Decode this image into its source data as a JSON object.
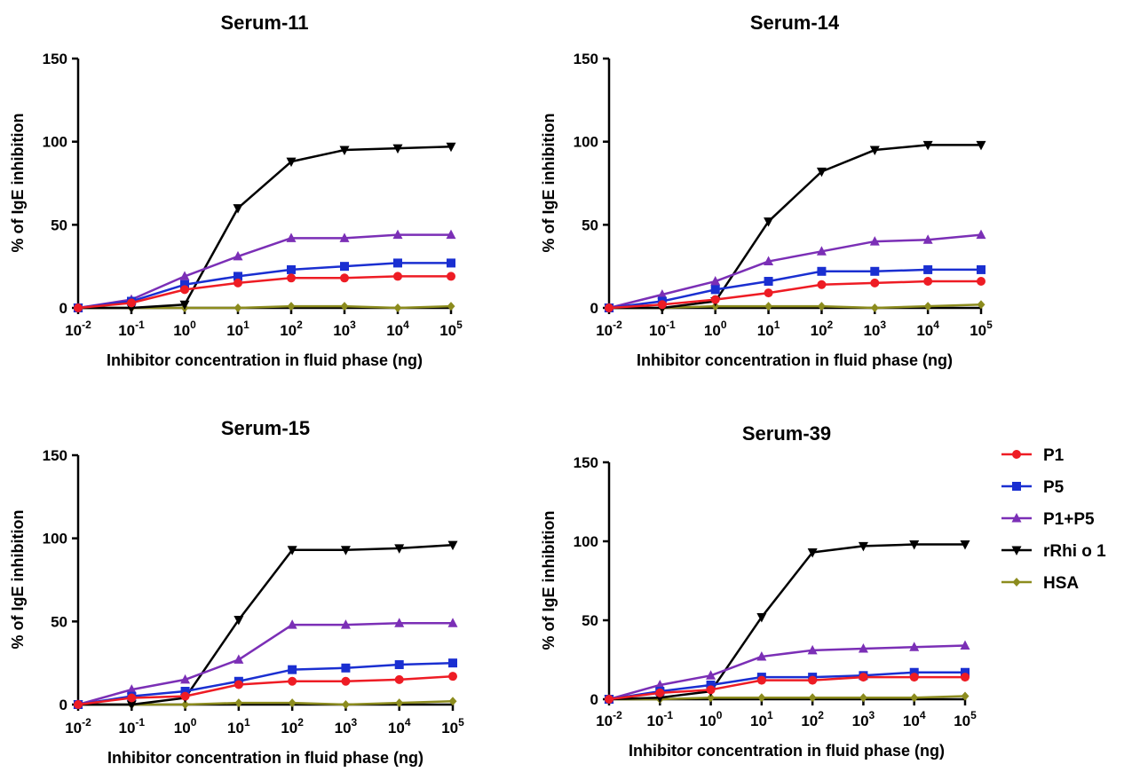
{
  "legend": {
    "placement": "right",
    "entries": [
      {
        "name": "P1",
        "color": "#ee1c24",
        "marker": "circle"
      },
      {
        "name": "P5",
        "color": "#1a2fd1",
        "marker": "square"
      },
      {
        "name": "P1+P5",
        "color": "#7b2fb6",
        "marker": "triangle-up"
      },
      {
        "name": "rRhi o 1",
        "color": "#000000",
        "marker": "triangle-down"
      },
      {
        "name": "HSA",
        "color": "#8c8c1e",
        "marker": "diamond"
      }
    ]
  },
  "chart_data": [
    {
      "type": "line",
      "title": "Serum-11",
      "xlabel": "Inhibitor concentration  in fluid phase (ng)",
      "ylabel": "% of IgE inhibition",
      "xscale": "log",
      "x": [
        0.01,
        0.1,
        1,
        10,
        100,
        1000,
        10000,
        100000
      ],
      "xticks": [
        {
          "base": "10",
          "exp": "-2"
        },
        {
          "base": "10",
          "exp": "-1"
        },
        {
          "base": "10",
          "exp": "0"
        },
        {
          "base": "10",
          "exp": "1"
        },
        {
          "base": "10",
          "exp": "2"
        },
        {
          "base": "10",
          "exp": "3"
        },
        {
          "base": "10",
          "exp": "4"
        },
        {
          "base": "10",
          "exp": "5"
        }
      ],
      "ylim": [
        0,
        150
      ],
      "yticks": [
        "0",
        "50",
        "100",
        "150"
      ],
      "grid": false,
      "series": [
        {
          "name": "P1",
          "values": [
            0,
            3,
            11,
            15,
            18,
            18,
            19,
            19
          ]
        },
        {
          "name": "P5",
          "values": [
            0,
            4,
            14,
            19,
            23,
            25,
            27,
            27
          ]
        },
        {
          "name": "P1+P5",
          "values": [
            0,
            5,
            19,
            31,
            42,
            42,
            44,
            44
          ]
        },
        {
          "name": "rRhi o 1",
          "values": [
            0,
            0,
            2,
            60,
            88,
            95,
            96,
            97
          ]
        },
        {
          "name": "HSA",
          "values": [
            0,
            0,
            0,
            0,
            1,
            1,
            0,
            1
          ]
        }
      ]
    },
    {
      "type": "line",
      "title": "Serum-14",
      "xlabel": "Inhibitor concentration  in fluid phase (ng)",
      "ylabel": "% of IgE inhibition",
      "xscale": "log",
      "x": [
        0.01,
        0.1,
        1,
        10,
        100,
        1000,
        10000,
        100000
      ],
      "xticks": [
        {
          "base": "10",
          "exp": "-2"
        },
        {
          "base": "10",
          "exp": "-1"
        },
        {
          "base": "10",
          "exp": "0"
        },
        {
          "base": "10",
          "exp": "1"
        },
        {
          "base": "10",
          "exp": "2"
        },
        {
          "base": "10",
          "exp": "3"
        },
        {
          "base": "10",
          "exp": "4"
        },
        {
          "base": "10",
          "exp": "5"
        }
      ],
      "ylim": [
        0,
        150
      ],
      "yticks": [
        "0",
        "50",
        "100",
        "150"
      ],
      "grid": false,
      "series": [
        {
          "name": "P1",
          "values": [
            0,
            2,
            5,
            9,
            14,
            15,
            16,
            16
          ]
        },
        {
          "name": "P5",
          "values": [
            0,
            4,
            11,
            16,
            22,
            22,
            23,
            23
          ]
        },
        {
          "name": "P1+P5",
          "values": [
            0,
            8,
            16,
            28,
            34,
            40,
            41,
            44
          ]
        },
        {
          "name": "rRhi o 1",
          "values": [
            0,
            0,
            4,
            52,
            82,
            95,
            98,
            98
          ]
        },
        {
          "name": "HSA",
          "values": [
            0,
            0,
            1,
            1,
            1,
            0,
            1,
            2
          ]
        }
      ]
    },
    {
      "type": "line",
      "title": "Serum-15",
      "xlabel": "Inhibitor concentration in fluid phase (ng)",
      "ylabel": "% of IgE inhibition",
      "xscale": "log",
      "x": [
        0.01,
        0.1,
        1,
        10,
        100,
        1000,
        10000,
        100000
      ],
      "xticks": [
        {
          "base": "10",
          "exp": "-2"
        },
        {
          "base": "10",
          "exp": "-1"
        },
        {
          "base": "10",
          "exp": "0"
        },
        {
          "base": "10",
          "exp": "1"
        },
        {
          "base": "10",
          "exp": "2"
        },
        {
          "base": "10",
          "exp": "3"
        },
        {
          "base": "10",
          "exp": "4"
        },
        {
          "base": "10",
          "exp": "5"
        }
      ],
      "ylim": [
        0,
        150
      ],
      "yticks": [
        "0",
        "50",
        "100",
        "150"
      ],
      "grid": false,
      "series": [
        {
          "name": "P1",
          "values": [
            0,
            4,
            5,
            12,
            14,
            14,
            15,
            17
          ]
        },
        {
          "name": "P5",
          "values": [
            0,
            5,
            8,
            14,
            21,
            22,
            24,
            25
          ]
        },
        {
          "name": "P1+P5",
          "values": [
            0,
            9,
            15,
            27,
            48,
            48,
            49,
            49
          ]
        },
        {
          "name": "rRhi o 1",
          "values": [
            0,
            0,
            4,
            51,
            93,
            93,
            94,
            96
          ]
        },
        {
          "name": "HSA",
          "values": [
            0,
            0,
            0,
            1,
            1,
            0,
            1,
            2
          ]
        }
      ]
    },
    {
      "type": "line",
      "title": "Serum-39",
      "xlabel": "Inhibitor concentration in fluid phase (ng)",
      "ylabel": "% of IgE inhibition",
      "xscale": "log",
      "x": [
        0.01,
        0.1,
        1,
        10,
        100,
        1000,
        10000,
        100000
      ],
      "xticks": [
        {
          "base": "10",
          "exp": "-2"
        },
        {
          "base": "10",
          "exp": "-1"
        },
        {
          "base": "10",
          "exp": "0"
        },
        {
          "base": "10",
          "exp": "1"
        },
        {
          "base": "10",
          "exp": "2"
        },
        {
          "base": "10",
          "exp": "3"
        },
        {
          "base": "10",
          "exp": "4"
        },
        {
          "base": "10",
          "exp": "5"
        }
      ],
      "ylim": [
        0,
        150
      ],
      "yticks": [
        "0",
        "50",
        "100",
        "150"
      ],
      "grid": false,
      "series": [
        {
          "name": "P1",
          "values": [
            0,
            4,
            6,
            12,
            12,
            14,
            14,
            14
          ]
        },
        {
          "name": "P5",
          "values": [
            0,
            5,
            9,
            14,
            14,
            15,
            17,
            17
          ]
        },
        {
          "name": "P1+P5",
          "values": [
            0,
            9,
            15,
            27,
            31,
            32,
            33,
            34
          ]
        },
        {
          "name": "rRhi o 1",
          "values": [
            0,
            1,
            5,
            52,
            93,
            97,
            98,
            98
          ]
        },
        {
          "name": "HSA",
          "values": [
            0,
            0,
            1,
            1,
            1,
            1,
            1,
            2
          ]
        }
      ]
    }
  ]
}
